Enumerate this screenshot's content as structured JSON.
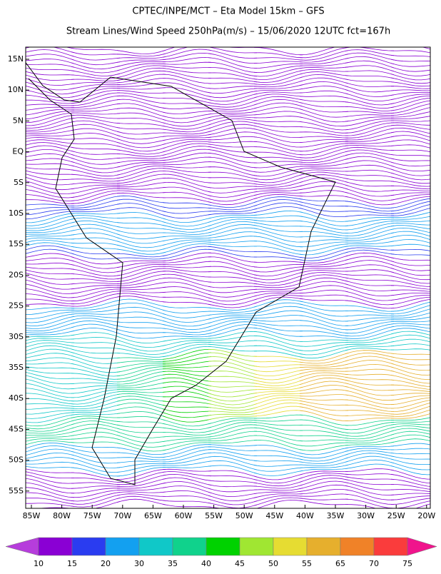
{
  "header": {
    "line1": "CPTEC/INPE/MCT –  Eta Model 15km – GFS",
    "line2": "Stream Lines/Wind Speed 250hPa(m/s) – 15/06/2020 12UTC fct=167h"
  },
  "map": {
    "lat_labels": [
      "15N",
      "10N",
      "5N",
      "EQ",
      "5S",
      "10S",
      "15S",
      "20S",
      "25S",
      "30S",
      "35S",
      "40S",
      "45S",
      "50S",
      "55S"
    ],
    "lon_labels": [
      "85W",
      "80W",
      "75W",
      "70W",
      "65W",
      "60W",
      "55W",
      "50W",
      "45W",
      "40W",
      "35W",
      "30W",
      "25W",
      "20W"
    ]
  },
  "colorbar": {
    "levels": [
      10,
      15,
      20,
      30,
      35,
      40,
      45,
      50,
      55,
      65,
      70,
      75
    ],
    "colors": [
      "#8a00d4",
      "#2a3cf0",
      "#13a0f0",
      "#10c8c8",
      "#10d28c",
      "#00d200",
      "#a0e632",
      "#e6dc32",
      "#e6af2d",
      "#f08228",
      "#fa3c3c"
    ],
    "under_color": "#b63ddc",
    "over_color": "#f0148c"
  }
}
